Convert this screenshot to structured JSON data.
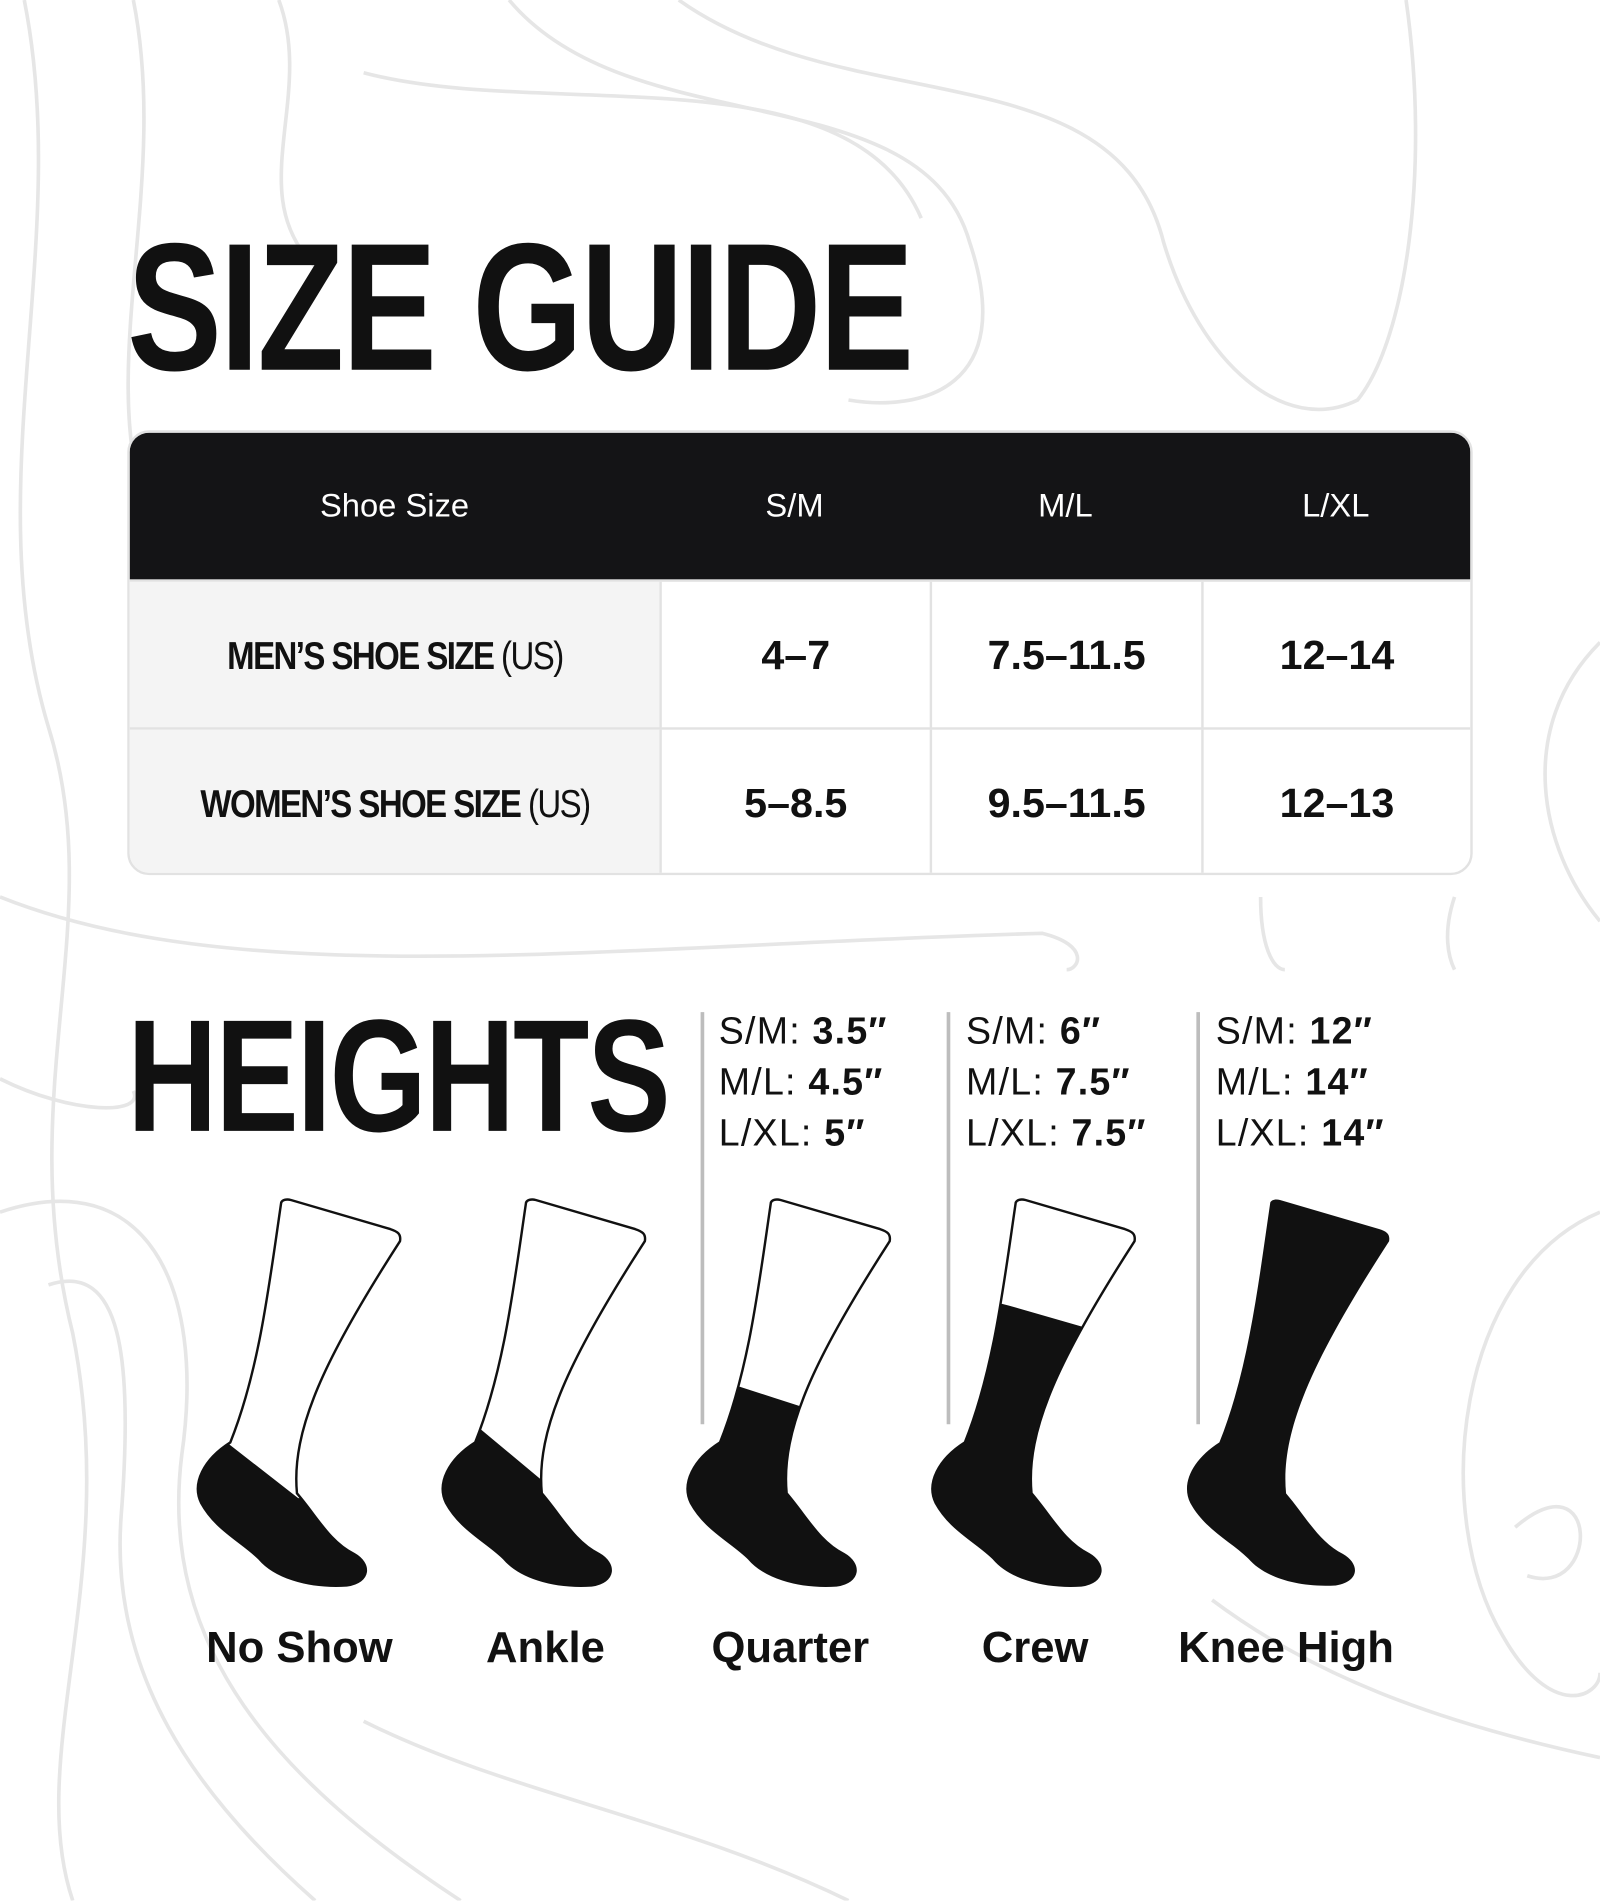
{
  "title": "SIZE GUIDE",
  "table": {
    "headers": [
      "Shoe Size",
      "S/M",
      "M/L",
      "L/XL"
    ],
    "rows": [
      {
        "label": "MEN’S SHOE SIZE",
        "unit": "(US)",
        "values": [
          "4–7",
          "7.5–11.5",
          "12–14"
        ]
      },
      {
        "label": "WOMEN’S SHOE SIZE",
        "unit": "(US)",
        "values": [
          "5–8.5",
          "9.5–11.5",
          "12–13"
        ]
      }
    ]
  },
  "heights": {
    "title": "HEIGHTS",
    "groups": [
      {
        "lines": [
          {
            "size": "S/M:",
            "value": "3.5″"
          },
          {
            "size": "M/L:",
            "value": "4.5″"
          },
          {
            "size": "L/XL:",
            "value": "5″"
          }
        ]
      },
      {
        "lines": [
          {
            "size": "S/M:",
            "value": "6″"
          },
          {
            "size": "M/L:",
            "value": "7.5″"
          },
          {
            "size": "L/XL:",
            "value": "7.5″"
          }
        ]
      },
      {
        "lines": [
          {
            "size": "S/M:",
            "value": "12″"
          },
          {
            "size": "M/L:",
            "value": "14″"
          },
          {
            "size": "L/XL:",
            "value": "14″"
          }
        ]
      }
    ],
    "styles": [
      "No Show",
      "Ankle",
      "Quarter",
      "Crew",
      "Knee High"
    ]
  },
  "colors": {
    "dark": "#141416",
    "row_label_bg": "#f4f4f4",
    "border": "#e2e2e2",
    "topo_lines": "#e6e6e6"
  }
}
